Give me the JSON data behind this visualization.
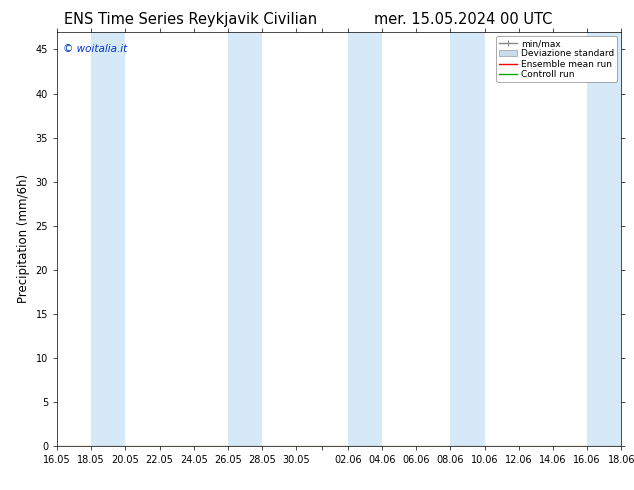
{
  "title_left": "ENS Time Series Reykjavik Civilian",
  "title_right": "mer. 15.05.2024 00 UTC",
  "ylabel": "Precipitation (mm/6h)",
  "watermark": "© woitalia.it",
  "ylim": [
    0,
    47
  ],
  "yticks": [
    0,
    5,
    10,
    15,
    20,
    25,
    30,
    35,
    40,
    45
  ],
  "xtick_labels": [
    "16.05",
    "18.05",
    "20.05",
    "22.05",
    "24.05",
    "26.05",
    "28.05",
    "30.05",
    "",
    "02.06",
    "04.06",
    "06.06",
    "08.06",
    "10.06",
    "12.06",
    "14.06",
    "16.06",
    "18.06"
  ],
  "bg_color": "#ffffff",
  "band_color": "#d6e9f8",
  "title_fontsize": 10.5,
  "tick_fontsize": 7,
  "ylabel_fontsize": 8.5,
  "legend_labels": [
    "min/max",
    "Deviazione standard",
    "Ensemble mean run",
    "Controll run"
  ]
}
